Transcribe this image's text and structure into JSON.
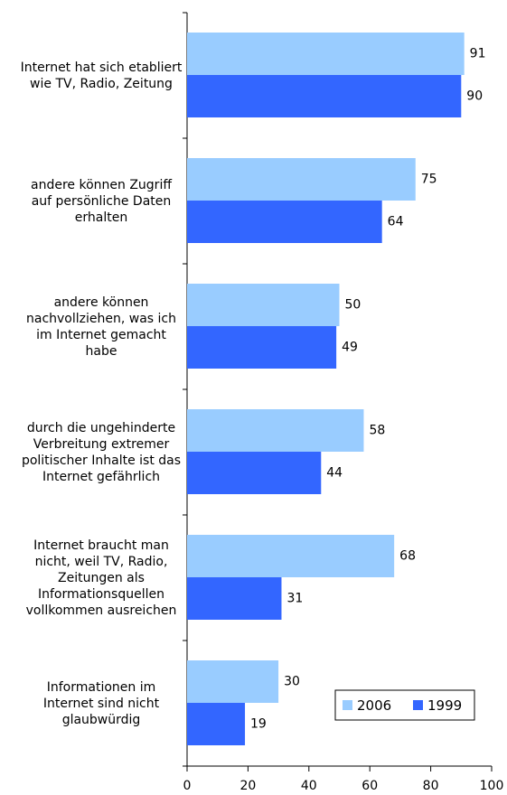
{
  "chart_data": {
    "type": "hbar",
    "categories": [
      "Internet hat sich etabliert wie TV, Radio, Zeitung",
      "andere können Zugriff auf persönliche Daten erhalten",
      "andere können nachvollziehen, was ich im Internet gemacht habe",
      "durch die ungehinderte Verbreitung extremer politischer Inhalte ist das Internet gefährlich",
      "Internet braucht man nicht, weil TV, Radio, Zeitungen als Informationsquellen vollkommen ausreichen",
      "Informationen im Internet sind nicht glaubwürdig"
    ],
    "series": [
      {
        "name": "2006",
        "color": "#99ccff",
        "values": [
          91,
          75,
          50,
          58,
          68,
          30
        ]
      },
      {
        "name": "1999",
        "color": "#3366ff",
        "values": [
          90,
          64,
          49,
          44,
          31,
          19
        ]
      }
    ],
    "xlim": [
      0,
      100
    ],
    "xticks": [
      0,
      20,
      40,
      60,
      80,
      100
    ],
    "legend": "lower right",
    "grid": false
  }
}
